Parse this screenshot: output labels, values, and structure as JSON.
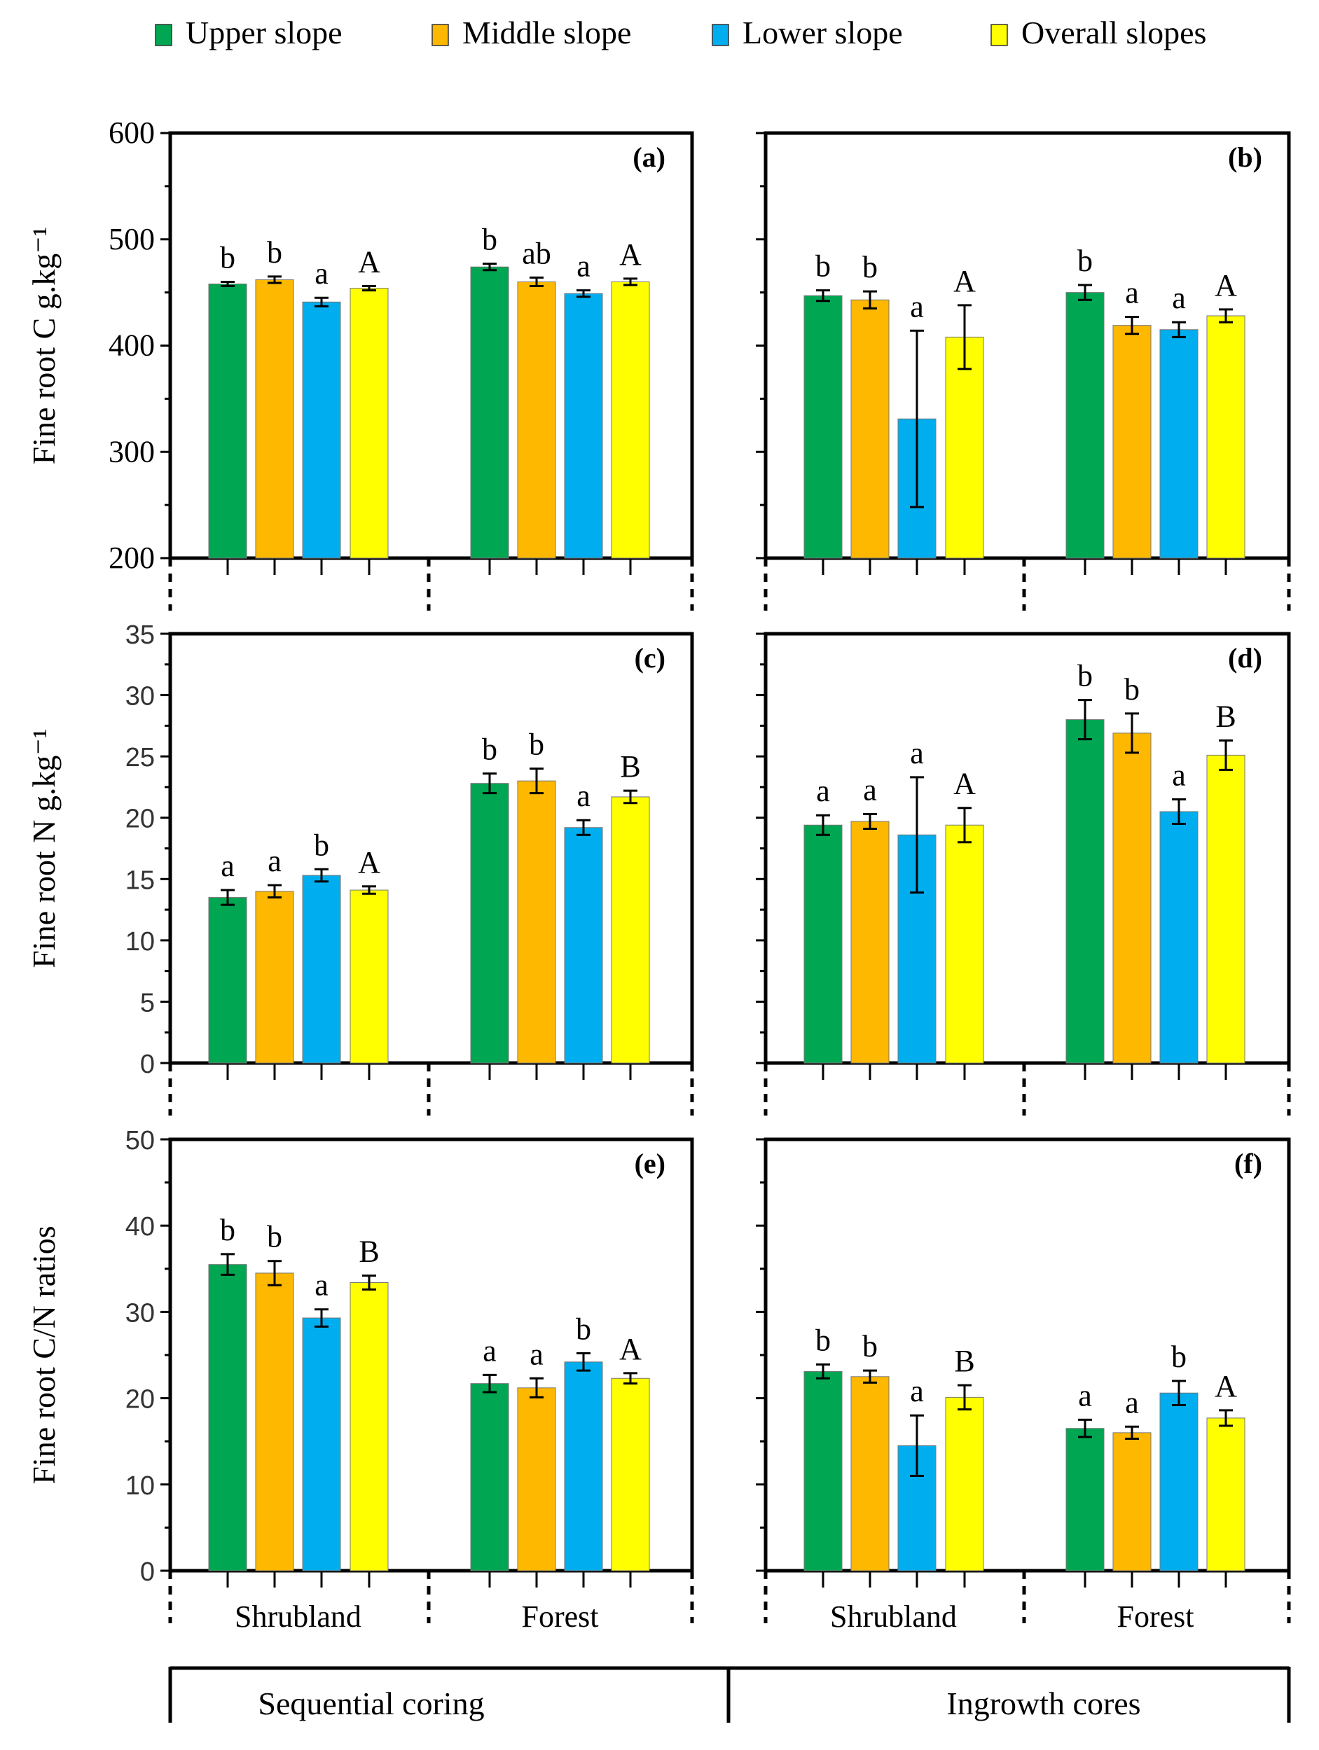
{
  "legend": [
    {
      "label": "Upper slope",
      "color": "#00a651"
    },
    {
      "label": "Middle slope",
      "color": "#ffb800"
    },
    {
      "label": "Lower slope",
      "color": "#00aeef"
    },
    {
      "label": "Overall slopes",
      "color": "#ffff00"
    }
  ],
  "groups": [
    "Shrubland",
    "Forest"
  ],
  "methods": [
    "Sequential coring",
    "Ingrowth cores"
  ],
  "chart_data": [
    {
      "panel": "(a)",
      "type": "bar",
      "method": "Sequential coring",
      "ylabel": "Fine root C g.kg⁻¹",
      "ylim": [
        200,
        600
      ],
      "yticks": [
        "200",
        "300",
        "400",
        "500",
        "600"
      ],
      "categories": [
        "Shrubland",
        "Forest"
      ],
      "series": [
        {
          "name": "Upper slope",
          "values": [
            458,
            474
          ],
          "errors": [
            2,
            3
          ],
          "letters": [
            "b",
            "b"
          ]
        },
        {
          "name": "Middle slope",
          "values": [
            462,
            460
          ],
          "errors": [
            3,
            4
          ],
          "letters": [
            "b",
            "ab"
          ]
        },
        {
          "name": "Lower slope",
          "values": [
            441,
            449
          ],
          "errors": [
            4,
            3
          ],
          "letters": [
            "a",
            "a"
          ]
        },
        {
          "name": "Overall slopes",
          "values": [
            454,
            460
          ],
          "errors": [
            2,
            3
          ],
          "letters": [
            "A",
            "A"
          ]
        }
      ]
    },
    {
      "panel": "(b)",
      "type": "bar",
      "method": "Ingrowth cores",
      "ylabel": "",
      "ylim": [
        200,
        600
      ],
      "yticks": [],
      "categories": [
        "Shrubland",
        "Forest"
      ],
      "series": [
        {
          "name": "Upper slope",
          "values": [
            447,
            450
          ],
          "errors": [
            5,
            7
          ],
          "letters": [
            "b",
            "b"
          ]
        },
        {
          "name": "Middle slope",
          "values": [
            443,
            419
          ],
          "errors": [
            8,
            8
          ],
          "letters": [
            "b",
            "a"
          ]
        },
        {
          "name": "Lower slope",
          "values": [
            331,
            415
          ],
          "errors": [
            83,
            7
          ],
          "letters": [
            "a",
            "a"
          ]
        },
        {
          "name": "Overall slopes",
          "values": [
            408,
            428
          ],
          "errors": [
            30,
            6
          ],
          "letters": [
            "A",
            "A"
          ]
        }
      ]
    },
    {
      "panel": "(c)",
      "type": "bar",
      "method": "Sequential coring",
      "ylabel": "Fine root N g.kg⁻¹",
      "ylim": [
        0,
        35
      ],
      "yticks": [
        "0",
        "5",
        "10",
        "15",
        "20",
        "25",
        "30",
        "35"
      ],
      "categories": [
        "Shrubland",
        "Forest"
      ],
      "series": [
        {
          "name": "Upper slope",
          "values": [
            13.5,
            22.8
          ],
          "errors": [
            0.6,
            0.8
          ],
          "letters": [
            "a",
            "b"
          ]
        },
        {
          "name": "Middle slope",
          "values": [
            14.0,
            23.0
          ],
          "errors": [
            0.5,
            1.0
          ],
          "letters": [
            "a",
            "b"
          ]
        },
        {
          "name": "Lower slope",
          "values": [
            15.3,
            19.2
          ],
          "errors": [
            0.5,
            0.6
          ],
          "letters": [
            "b",
            "a"
          ]
        },
        {
          "name": "Overall slopes",
          "values": [
            14.1,
            21.7
          ],
          "errors": [
            0.3,
            0.5
          ],
          "letters": [
            "A",
            "B"
          ]
        }
      ]
    },
    {
      "panel": "(d)",
      "type": "bar",
      "method": "Ingrowth cores",
      "ylabel": "",
      "ylim": [
        0,
        35
      ],
      "yticks": [],
      "categories": [
        "Shrubland",
        "Forest"
      ],
      "series": [
        {
          "name": "Upper slope",
          "values": [
            19.4,
            28.0
          ],
          "errors": [
            0.8,
            1.6
          ],
          "letters": [
            "a",
            "b"
          ]
        },
        {
          "name": "Middle slope",
          "values": [
            19.7,
            26.9
          ],
          "errors": [
            0.6,
            1.6
          ],
          "letters": [
            "a",
            "b"
          ]
        },
        {
          "name": "Lower slope",
          "values": [
            18.6,
            20.5
          ],
          "errors": [
            4.7,
            1.0
          ],
          "letters": [
            "a",
            "a"
          ]
        },
        {
          "name": "Overall slopes",
          "values": [
            19.4,
            25.1
          ],
          "errors": [
            1.4,
            1.2
          ],
          "letters": [
            "A",
            "B"
          ]
        }
      ]
    },
    {
      "panel": "(e)",
      "type": "bar",
      "method": "Sequential coring",
      "ylabel": "Fine root C/N ratios",
      "ylim": [
        0,
        50
      ],
      "yticks": [
        "0",
        "10",
        "20",
        "30",
        "40",
        "50"
      ],
      "categories": [
        "Shrubland",
        "Forest"
      ],
      "series": [
        {
          "name": "Upper slope",
          "values": [
            35.5,
            21.7
          ],
          "errors": [
            1.2,
            1.0
          ],
          "letters": [
            "b",
            "a"
          ]
        },
        {
          "name": "Middle slope",
          "values": [
            34.5,
            21.2
          ],
          "errors": [
            1.4,
            1.1
          ],
          "letters": [
            "b",
            "a"
          ]
        },
        {
          "name": "Lower slope",
          "values": [
            29.3,
            24.2
          ],
          "errors": [
            1.0,
            1.0
          ],
          "letters": [
            "a",
            "b"
          ]
        },
        {
          "name": "Overall slopes",
          "values": [
            33.4,
            22.3
          ],
          "errors": [
            0.8,
            0.6
          ],
          "letters": [
            "B",
            "A"
          ]
        }
      ]
    },
    {
      "panel": "(f)",
      "type": "bar",
      "method": "Ingrowth cores",
      "ylabel": "",
      "ylim": [
        0,
        50
      ],
      "yticks": [],
      "categories": [
        "Shrubland",
        "Forest"
      ],
      "series": [
        {
          "name": "Upper slope",
          "values": [
            23.1,
            16.5
          ],
          "errors": [
            0.8,
            1.0
          ],
          "letters": [
            "b",
            "a"
          ]
        },
        {
          "name": "Middle slope",
          "values": [
            22.5,
            16.0
          ],
          "errors": [
            0.7,
            0.7
          ],
          "letters": [
            "b",
            "a"
          ]
        },
        {
          "name": "Lower slope",
          "values": [
            14.5,
            20.6
          ],
          "errors": [
            3.5,
            1.4
          ],
          "letters": [
            "a",
            "b"
          ]
        },
        {
          "name": "Overall slopes",
          "values": [
            20.1,
            17.7
          ],
          "errors": [
            1.4,
            0.9
          ],
          "letters": [
            "B",
            "A"
          ]
        }
      ]
    }
  ]
}
